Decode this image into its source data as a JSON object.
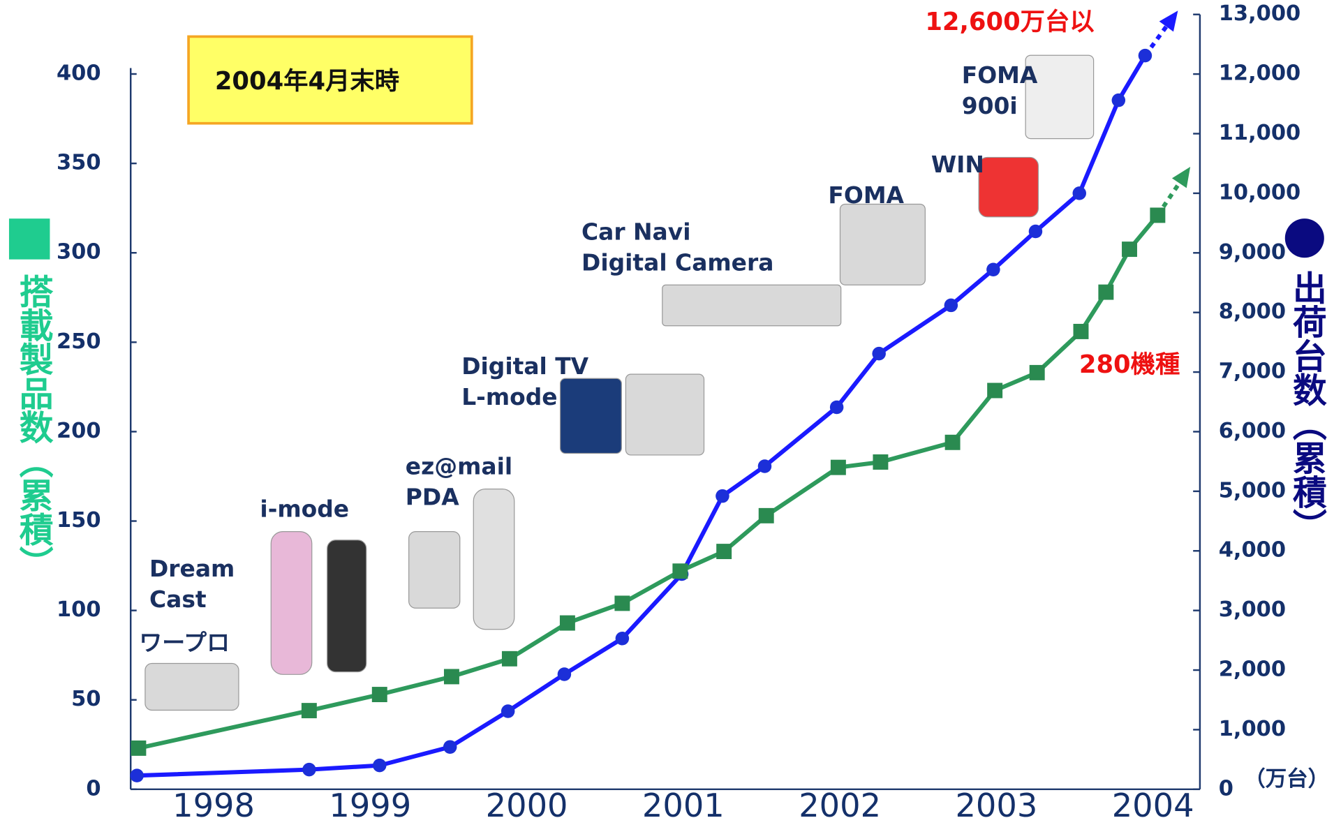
{
  "chart_data": {
    "type": "line",
    "xlim": [
      1997.47,
      2004.3
    ],
    "xticks": [
      1998,
      1999,
      2000,
      2001,
      2002,
      2003,
      2004
    ],
    "ylim": [
      0,
      400
    ],
    "yticks": [
      0,
      50,
      100,
      150,
      200,
      250,
      300,
      350,
      400
    ],
    "y2lim": [
      0,
      13000
    ],
    "y2ticks": [
      0,
      {
        "value": 1000,
        "label": "1,000"
      },
      {
        "value": 2000,
        "label": "2,000"
      },
      {
        "value": 3000,
        "label": "3,000"
      },
      {
        "value": 4000,
        "label": "4,000"
      },
      {
        "value": 5000,
        "label": "5,000"
      },
      {
        "value": 6000,
        "label": "6,000"
      },
      {
        "value": 7000,
        "label": "7,000"
      },
      {
        "value": 8000,
        "label": "8,000"
      },
      {
        "value": 9000,
        "label": "9,000"
      },
      {
        "value": 10000,
        "label": "10,000"
      },
      {
        "value": 11000,
        "label": "11,000"
      },
      {
        "value": 12000,
        "label": "12,000"
      },
      {
        "value": 13000,
        "label": "13,000"
      }
    ],
    "y2_unit": "（万台）",
    "series": [
      {
        "name": "出荷台数（累積）",
        "axis": "y2",
        "color": "#1a1aff",
        "marker_color": "#1c2fd8",
        "symbol_color": "#0a0a80",
        "x": [
          1997.51,
          1998.61,
          1999.06,
          1999.51,
          1999.88,
          2000.24,
          2000.61,
          2000.99,
          2001.25,
          2001.52,
          2001.98,
          2002.25,
          2002.71,
          2002.98,
          2003.25,
          2003.53,
          2003.78,
          2003.95
        ],
        "values": [
          230,
          330,
          400,
          710,
          1310,
          1930,
          2530,
          3610,
          4920,
          5420,
          6410,
          7310,
          8120,
          8720,
          9360,
          10000,
          11560,
          12310
        ]
      },
      {
        "name": "搭載製品数（累積）",
        "axis": "y",
        "color": "#2e9a5c",
        "marker_color": "#2a8a50",
        "symbol_color": "#1fcc8f",
        "x": [
          1997.52,
          1998.61,
          1999.06,
          1999.52,
          1999.89,
          2000.26,
          2000.61,
          2000.98,
          2001.26,
          2001.53,
          2001.99,
          2002.26,
          2002.72,
          2002.99,
          2003.26,
          2003.54,
          2003.7,
          2003.85,
          2004.03
        ],
        "values": [
          23,
          44,
          53,
          63,
          73,
          93,
          104,
          122,
          133,
          153,
          180,
          183,
          194,
          223,
          233,
          256,
          278,
          302,
          321
        ]
      }
    ],
    "date_note": "2004年4月末時",
    "annotations": [
      {
        "text": "12,600万台以"
      },
      {
        "text": "280機種"
      }
    ],
    "products": [
      {
        "lines": [
          "Dream",
          "Cast"
        ]
      },
      {
        "lines": [
          "ワープロ"
        ]
      },
      {
        "lines": [
          "i-mode"
        ]
      },
      {
        "lines": [
          "ez@mail",
          "PDA"
        ]
      },
      {
        "lines": [
          "Digital TV",
          "L-mode"
        ]
      },
      {
        "lines": [
          "Car Navi",
          "Digital Camera"
        ]
      },
      {
        "lines": [
          "FOMA"
        ]
      },
      {
        "lines": [
          "WIN"
        ]
      },
      {
        "lines": [
          "FOMA",
          "900i"
        ]
      }
    ]
  }
}
